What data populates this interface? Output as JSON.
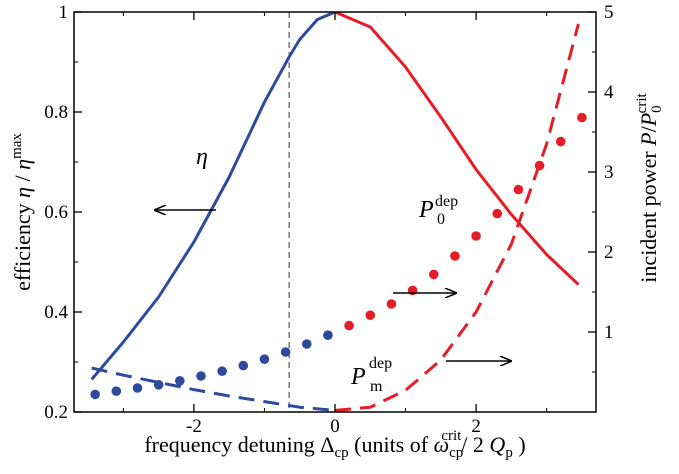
{
  "chart_data": {
    "type": "line",
    "xlim": [
      -3.7,
      3.7
    ],
    "ylim_left": [
      0.2,
      1.0
    ],
    "ylim_right": [
      0,
      5
    ],
    "x_ticks": [
      -2,
      0,
      2
    ],
    "y_ticks_left": [
      0.2,
      0.4,
      0.6,
      0.8,
      1
    ],
    "y_ticks_right": [
      1,
      2,
      3,
      4,
      5
    ],
    "x_tick_labels": [
      "-2",
      "0",
      "2"
    ],
    "y_tick_labels_left": [
      "0.2",
      "0.4",
      "0.6",
      "0.8",
      "1"
    ],
    "y_tick_labels_right": [
      "1",
      "2",
      "3",
      "4",
      "5"
    ],
    "reference_line_x": -0.65,
    "colors": {
      "left_branch": "#2e4a9b",
      "right_branch": "#e41e26",
      "axes": "#000000",
      "reference": "#555555"
    },
    "series": [
      {
        "name": "η",
        "style": "solid",
        "axis": "left",
        "x": [
          -3.45,
          -3.0,
          -2.5,
          -2.0,
          -1.5,
          -1.0,
          -0.65,
          -0.5,
          -0.25,
          0,
          0.5,
          1.0,
          1.5,
          2.0,
          2.5,
          3.0,
          3.45
        ],
        "y": [
          0.265,
          0.34,
          0.43,
          0.54,
          0.67,
          0.82,
          0.91,
          0.945,
          0.985,
          1.0,
          0.97,
          0.89,
          0.79,
          0.685,
          0.595,
          0.515,
          0.455
        ]
      },
      {
        "name": "P_m^dep",
        "style": "dashed",
        "axis": "right",
        "x": [
          -3.45,
          -3.0,
          -2.5,
          -2.0,
          -1.5,
          -1.0,
          -0.5,
          0,
          0.5,
          1.0,
          1.5,
          2.0,
          2.5,
          3.0,
          3.45
        ],
        "y": [
          0.55,
          0.46,
          0.37,
          0.28,
          0.2,
          0.13,
          0.06,
          0.02,
          0.06,
          0.27,
          0.65,
          1.25,
          2.1,
          3.35,
          4.85
        ]
      },
      {
        "name": "P_0^dep",
        "style": "dots",
        "axis": "right",
        "x": [
          -3.4,
          -3.1,
          -2.8,
          -2.5,
          -2.2,
          -1.9,
          -1.6,
          -1.3,
          -1.0,
          -0.7,
          -0.4,
          -0.1,
          0.2,
          0.5,
          0.8,
          1.1,
          1.4,
          1.7,
          2.0,
          2.3,
          2.6,
          2.9,
          3.2,
          3.5
        ],
        "y": [
          0.22,
          0.26,
          0.3,
          0.34,
          0.39,
          0.45,
          0.51,
          0.58,
          0.66,
          0.75,
          0.85,
          0.96,
          1.08,
          1.21,
          1.35,
          1.52,
          1.72,
          1.95,
          2.2,
          2.48,
          2.78,
          3.08,
          3.38,
          3.68
        ]
      }
    ],
    "xlabel_main": "frequency detuning ",
    "xlabel_delta": "Δ",
    "xlabel_delta_sub": "cp",
    "xlabel_units": " (units of ",
    "xlabel_omega": "ω",
    "xlabel_omega_sub": "cp",
    "xlabel_omega_sup": "crit",
    "xlabel_div": "/ 2 ",
    "xlabel_q": "Q",
    "xlabel_q_sub": "p",
    "xlabel_close": " )",
    "ylabel_left_main": "efficiency ",
    "ylabel_left_eta": "η",
    "ylabel_left_div": " / ",
    "ylabel_left_eta2": "η",
    "ylabel_left_sup": "max",
    "ylabel_right_main": "incident power ",
    "ylabel_right_p": "P",
    "ylabel_right_div": "/",
    "ylabel_right_p0": "P",
    "ylabel_right_p0_sub": "0",
    "ylabel_right_p0_sup": "crit",
    "annotations": {
      "eta_label": "η",
      "p0_base": "P",
      "p0_sub": "0",
      "p0_sup": "dep",
      "pm_base": "P",
      "pm_sub": "m",
      "pm_sup": "dep"
    }
  }
}
